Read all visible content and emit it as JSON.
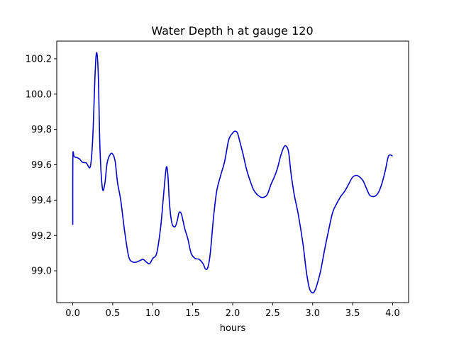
{
  "chart_data": {
    "type": "line",
    "title": "Water Depth h at gauge 120",
    "xlabel": "hours",
    "ylabel": "",
    "xlim": [
      -0.2,
      4.2
    ],
    "ylim": [
      98.82,
      100.3
    ],
    "xticks": [
      0.0,
      0.5,
      1.0,
      1.5,
      2.0,
      2.5,
      3.0,
      3.5,
      4.0
    ],
    "xtick_labels": [
      "0.0",
      "0.5",
      "1.0",
      "1.5",
      "2.0",
      "2.5",
      "3.0",
      "3.5",
      "4.0"
    ],
    "yticks": [
      99.0,
      99.2,
      99.4,
      99.6,
      99.8,
      100.0,
      100.2
    ],
    "ytick_labels": [
      "99.0",
      "99.2",
      "99.4",
      "99.6",
      "99.8",
      "100.0",
      "100.2"
    ],
    "grid": false,
    "series": [
      {
        "color": "#0000cc",
        "x": [
          0.0,
          0.002,
          0.02,
          0.08,
          0.12,
          0.17,
          0.22,
          0.25,
          0.28,
          0.3,
          0.32,
          0.34,
          0.37,
          0.4,
          0.43,
          0.47,
          0.5,
          0.53,
          0.56,
          0.6,
          0.65,
          0.7,
          0.75,
          0.8,
          0.85,
          0.88,
          0.92,
          0.96,
          1.0,
          1.05,
          1.1,
          1.14,
          1.17,
          1.19,
          1.21,
          1.24,
          1.28,
          1.31,
          1.33,
          1.36,
          1.4,
          1.44,
          1.48,
          1.53,
          1.58,
          1.63,
          1.66,
          1.69,
          1.72,
          1.76,
          1.8,
          1.85,
          1.9,
          1.95,
          2.0,
          2.03,
          2.06,
          2.09,
          2.13,
          2.17,
          2.21,
          2.26,
          2.31,
          2.37,
          2.43,
          2.48,
          2.52,
          2.56,
          2.6,
          2.64,
          2.67,
          2.7,
          2.73,
          2.77,
          2.82,
          2.88,
          2.92,
          2.96,
          3.0,
          3.03,
          3.06,
          3.1,
          3.15,
          3.2,
          3.25,
          3.3,
          3.35,
          3.4,
          3.45,
          3.5,
          3.55,
          3.59,
          3.63,
          3.67,
          3.71,
          3.75,
          3.79,
          3.83,
          3.87,
          3.91,
          3.95,
          4.0
        ],
        "y": [
          99.26,
          99.645,
          99.645,
          99.635,
          99.615,
          99.61,
          99.59,
          99.75,
          100.12,
          100.235,
          100.1,
          99.7,
          99.47,
          99.49,
          99.61,
          99.66,
          99.66,
          99.62,
          99.5,
          99.4,
          99.22,
          99.08,
          99.05,
          99.05,
          99.06,
          99.065,
          99.05,
          99.04,
          99.07,
          99.1,
          99.25,
          99.45,
          99.585,
          99.54,
          99.38,
          99.27,
          99.25,
          99.29,
          99.33,
          99.32,
          99.24,
          99.18,
          99.1,
          99.07,
          99.065,
          99.04,
          99.01,
          99.02,
          99.1,
          99.3,
          99.45,
          99.54,
          99.62,
          99.74,
          99.78,
          99.79,
          99.78,
          99.73,
          99.66,
          99.58,
          99.52,
          99.46,
          99.43,
          99.415,
          99.43,
          99.49,
          99.53,
          99.58,
          99.65,
          99.7,
          99.705,
          99.67,
          99.55,
          99.43,
          99.32,
          99.15,
          99.0,
          98.9,
          98.875,
          98.89,
          98.93,
          99.0,
          99.12,
          99.23,
          99.33,
          99.38,
          99.42,
          99.45,
          99.49,
          99.53,
          99.54,
          99.53,
          99.51,
          99.47,
          99.43,
          99.42,
          99.425,
          99.45,
          99.5,
          99.57,
          99.65,
          99.65
        ]
      }
    ]
  }
}
